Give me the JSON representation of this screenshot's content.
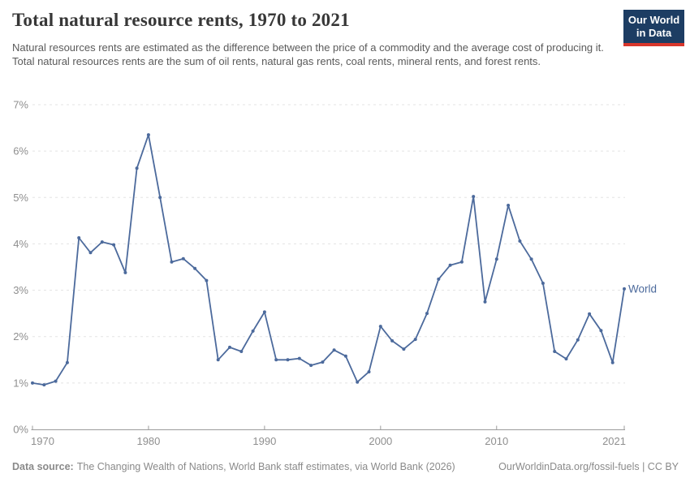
{
  "header": {
    "title": "Total natural resource rents, 1970 to 2021",
    "subtitle": "Natural resources rents are estimated as the difference between the price of a commodity and the average cost of producing it. Total natural resources rents are the sum of oil rents, natural gas rents, coal rents, mineral rents, and forest rents.",
    "logo": {
      "line1": "Our World",
      "line2": "in Data"
    }
  },
  "chart_data": {
    "type": "line",
    "title": "Total natural resource rents, 1970 to 2021",
    "xlabel": "",
    "ylabel": "",
    "xlim": [
      1970,
      2021
    ],
    "ylim": [
      0,
      7
    ],
    "grid": "horizontal-dashed",
    "legend_position": "end-of-line-label",
    "x_ticks": [
      1970,
      1980,
      1990,
      2000,
      2010,
      2021
    ],
    "x_tick_labels": [
      "1970",
      "1980",
      "1990",
      "2000",
      "2010",
      "2021"
    ],
    "y_ticks": [
      0,
      1,
      2,
      3,
      4,
      5,
      6,
      7
    ],
    "y_tick_labels": [
      "0%",
      "1%",
      "2%",
      "3%",
      "4%",
      "5%",
      "6%",
      "7%"
    ],
    "series": [
      {
        "name": "World",
        "color": "#4C6A9C",
        "x": [
          1970,
          1971,
          1972,
          1973,
          1974,
          1975,
          1976,
          1977,
          1978,
          1979,
          1980,
          1981,
          1982,
          1983,
          1984,
          1985,
          1986,
          1987,
          1988,
          1989,
          1990,
          1991,
          1992,
          1993,
          1994,
          1995,
          1996,
          1997,
          1998,
          1999,
          2000,
          2001,
          2002,
          2003,
          2004,
          2005,
          2006,
          2007,
          2008,
          2009,
          2010,
          2011,
          2012,
          2013,
          2014,
          2015,
          2016,
          2017,
          2018,
          2019,
          2020,
          2021
        ],
        "values": [
          1.0,
          0.96,
          1.04,
          1.44,
          4.13,
          3.81,
          4.04,
          3.98,
          3.38,
          5.63,
          6.35,
          5.0,
          3.61,
          3.68,
          3.47,
          3.21,
          1.5,
          1.77,
          1.68,
          2.12,
          2.53,
          1.5,
          1.5,
          1.53,
          1.38,
          1.45,
          1.71,
          1.58,
          1.02,
          1.24,
          2.22,
          1.91,
          1.73,
          1.94,
          2.5,
          3.24,
          3.54,
          3.61,
          5.02,
          2.75,
          3.67,
          4.83,
          4.06,
          3.67,
          3.15,
          1.68,
          1.52,
          1.93,
          2.49,
          2.13,
          1.44,
          3.03
        ]
      }
    ]
  },
  "footer": {
    "datasource_label": "Data source:",
    "datasource_text": "The Changing Wealth of Nations, World Bank staff estimates, via World Bank (2026)",
    "credit": "OurWorldinData.org/fossil-fuels | CC BY"
  },
  "colors": {
    "line": "#4C6A9C",
    "grid": "#e3e3e3",
    "axis": "#9b9b9b",
    "tick_label": "#8f8f8f",
    "logo_bg": "#1d3d63",
    "logo_bar": "#d8362b"
  }
}
